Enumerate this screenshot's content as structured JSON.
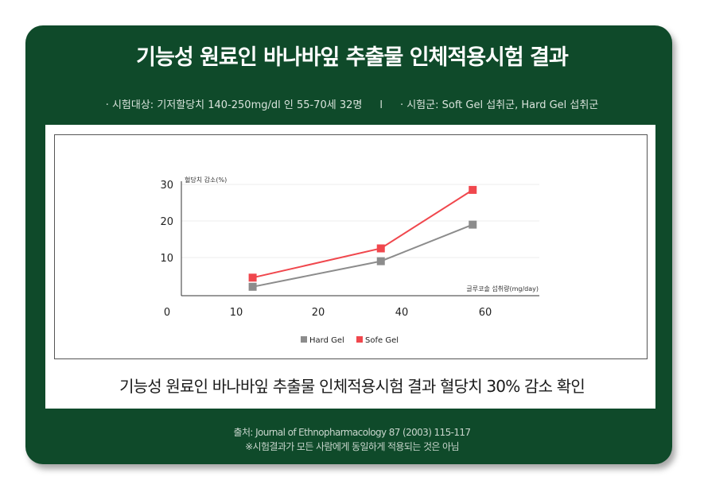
{
  "header": {
    "title": "기능성 원료인 바나바잎  추출물 인체적용시험 결과",
    "subtitle_left": "· 시험대상: 기저할당치 140-250mg/dl 인 55-70세 32명",
    "separator": "l",
    "subtitle_right": "· 시험군: Soft Gel 섭취군, Hard Gel 섭취군"
  },
  "caption": "기능성 원료인 바나바잎 추출물 인체적용시험 결과 혈당치 30% 감소 확인",
  "footer": {
    "source": "출처: Journal of Ethnopharmacology 87 (2003) 115-117",
    "note": "※시험결과가 모든 사람에게 동일하게 적용되는 것은 아님"
  },
  "colors": {
    "background": "#0f4a2a",
    "hard_gel": "#8c8c8c",
    "sofe_gel": "#f0474d"
  },
  "chart_data": {
    "type": "line",
    "ylabel": "혈당치 감소(%)",
    "xlabel": "글루코솔 섭취량(mg/day)",
    "origin_label": "0",
    "x_ticks": [
      10,
      20,
      40,
      60
    ],
    "y_ticks": [
      10,
      20,
      30
    ],
    "series": [
      {
        "name": "Hard Gel",
        "color": "#8c8c8c",
        "x": [
          12,
          35,
          57
        ],
        "y": [
          2,
          9,
          19
        ]
      },
      {
        "name": "Sofe Gel",
        "color": "#f0474d",
        "x": [
          12,
          35,
          57
        ],
        "y": [
          4.5,
          12.5,
          28.5
        ]
      }
    ]
  }
}
